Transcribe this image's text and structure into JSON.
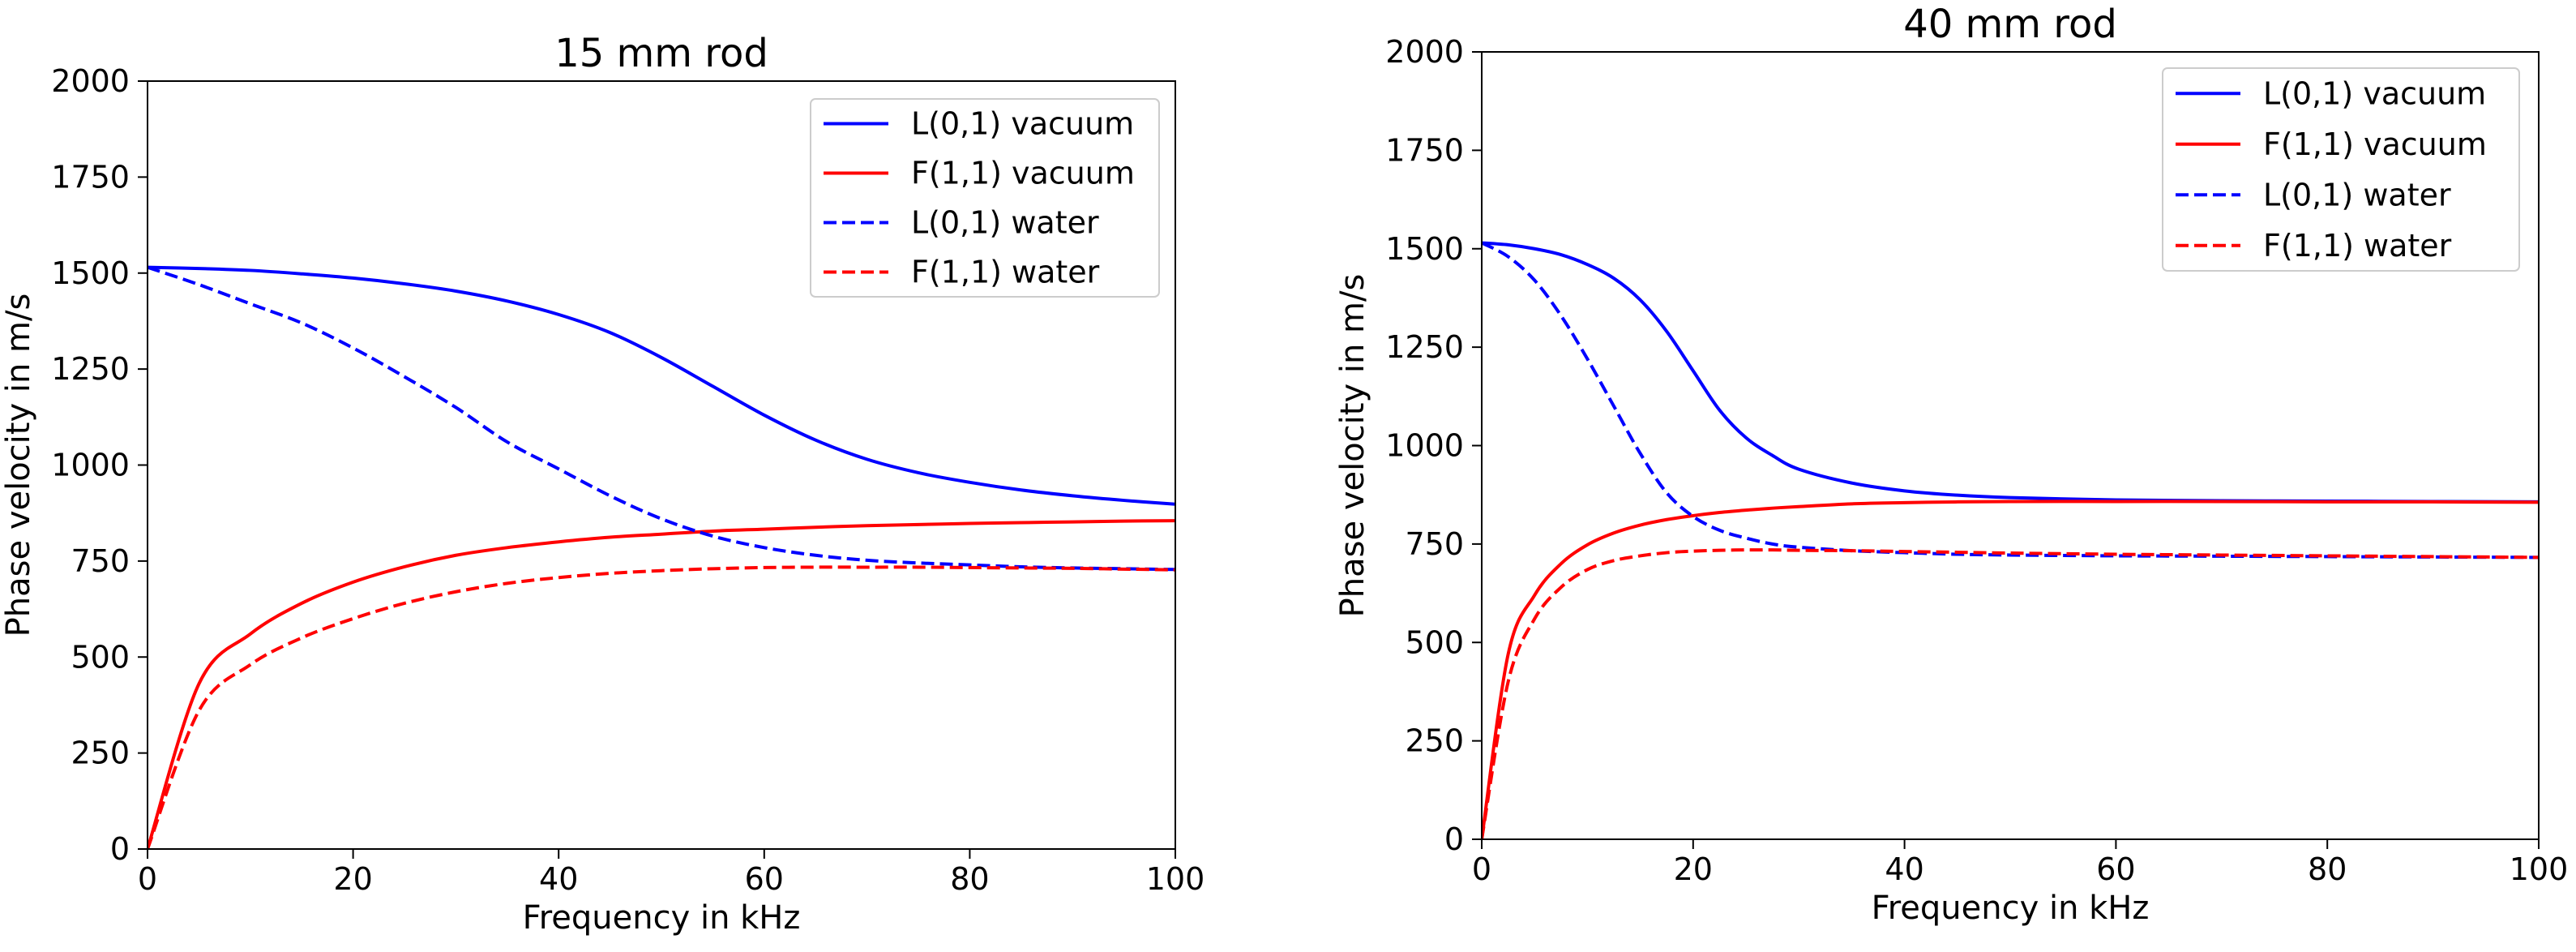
{
  "chart_data": [
    {
      "type": "line",
      "title": "15 mm rod",
      "xlabel": "Frequency in kHz",
      "ylabel": "Phase velocity in m/s",
      "xlim": [
        0,
        100
      ],
      "ylim": [
        0,
        2000
      ],
      "xticks": [
        "0",
        "20",
        "40",
        "60",
        "80",
        "100"
      ],
      "yticks": [
        "0",
        "250",
        "500",
        "750",
        "1000",
        "1250",
        "1500",
        "1750",
        "2000"
      ],
      "grid": false,
      "legend_position": "top-right",
      "x": [
        0,
        5,
        10,
        15,
        20,
        25,
        30,
        35,
        40,
        45,
        50,
        55,
        60,
        65,
        70,
        75,
        80,
        85,
        90,
        95,
        100
      ],
      "series": [
        {
          "name": "L(0,1) vacuum",
          "color": "#0000ff",
          "dash": "solid",
          "values": [
            1515,
            1512,
            1507,
            1498,
            1487,
            1472,
            1453,
            1427,
            1392,
            1345,
            1280,
            1205,
            1130,
            1065,
            1015,
            980,
            955,
            935,
            920,
            908,
            898
          ]
        },
        {
          "name": "F(1,1) vacuum",
          "color": "#ff0000",
          "dash": "solid",
          "values": [
            0,
            430,
            560,
            640,
            695,
            735,
            765,
            785,
            800,
            812,
            820,
            828,
            833,
            838,
            842,
            845,
            848,
            850,
            852,
            854,
            855
          ]
        },
        {
          "name": "L(0,1) water",
          "color": "#0000ff",
          "dash": "dashed",
          "values": [
            1515,
            1470,
            1420,
            1370,
            1305,
            1230,
            1150,
            1060,
            990,
            920,
            860,
            815,
            785,
            765,
            752,
            745,
            740,
            735,
            732,
            730,
            728
          ]
        },
        {
          "name": "F(1,1) water",
          "color": "#ff0000",
          "dash": "dashed",
          "values": [
            0,
            360,
            480,
            550,
            600,
            640,
            670,
            692,
            707,
            718,
            725,
            730,
            733,
            734,
            734,
            734,
            733,
            732,
            731,
            729,
            727
          ]
        }
      ]
    },
    {
      "type": "line",
      "title": "40 mm rod",
      "xlabel": "Frequency in kHz",
      "ylabel": "Phase velocity in m/s",
      "xlim": [
        0,
        100
      ],
      "ylim": [
        0,
        2000
      ],
      "xticks": [
        "0",
        "20",
        "40",
        "60",
        "80",
        "100"
      ],
      "yticks": [
        "0",
        "250",
        "500",
        "750",
        "1000",
        "1250",
        "1500",
        "1750",
        "2000"
      ],
      "grid": false,
      "legend_position": "top-right",
      "x": [
        0,
        2.5,
        5,
        7.5,
        10,
        12.5,
        15,
        17.5,
        20,
        22.5,
        25,
        27.5,
        30,
        35,
        40,
        45,
        50,
        60,
        70,
        80,
        90,
        100
      ],
      "series": [
        {
          "name": "L(0,1) vacuum",
          "color": "#0000ff",
          "dash": "solid",
          "values": [
            1515,
            1510,
            1500,
            1485,
            1460,
            1425,
            1370,
            1290,
            1190,
            1090,
            1020,
            975,
            940,
            905,
            885,
            874,
            868,
            862,
            860,
            859,
            858,
            857
          ]
        },
        {
          "name": "F(1,1) vacuum",
          "color": "#ff0000",
          "dash": "solid",
          "values": [
            0,
            470,
            620,
            700,
            748,
            778,
            798,
            812,
            822,
            830,
            836,
            841,
            845,
            852,
            855,
            857,
            858,
            858,
            858,
            857,
            857,
            856
          ]
        },
        {
          "name": "L(0,1) water",
          "color": "#0000ff",
          "dash": "dashed",
          "values": [
            1515,
            1480,
            1420,
            1330,
            1220,
            1100,
            980,
            880,
            820,
            785,
            765,
            750,
            742,
            733,
            728,
            724,
            722,
            720,
            719,
            718,
            717,
            716
          ]
        },
        {
          "name": "F(1,1) water",
          "color": "#ff0000",
          "dash": "dashed",
          "values": [
            0,
            400,
            560,
            640,
            685,
            708,
            720,
            728,
            732,
            734,
            735,
            735,
            734,
            733,
            731,
            729,
            727,
            724,
            722,
            720,
            718,
            716
          ]
        }
      ]
    }
  ]
}
